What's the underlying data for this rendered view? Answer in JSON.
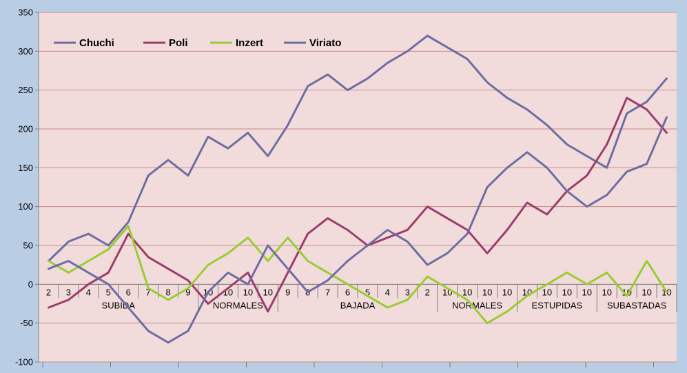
{
  "chart_data": {
    "type": "line",
    "title": "",
    "xlabel": "",
    "ylabel": "",
    "ylim": [
      -100,
      350
    ],
    "yticks": [
      350,
      300,
      250,
      200,
      150,
      100,
      50,
      0,
      -50,
      -100
    ],
    "grid": true,
    "legend_position": "top-left",
    "x_labels": [
      "2",
      "3",
      "4",
      "5",
      "6",
      "7",
      "8",
      "9",
      "10",
      "10",
      "10",
      "10",
      "9",
      "8",
      "7",
      "6",
      "5",
      "4",
      "3",
      "2",
      "10",
      "10",
      "10",
      "10",
      "10",
      "10",
      "10",
      "10",
      "10",
      "10",
      "10",
      "10"
    ],
    "groups": [
      {
        "label": "SUBIDA",
        "start": 0,
        "end": 8
      },
      {
        "label": "NORMALES",
        "start": 8,
        "end": 12
      },
      {
        "label": "BAJADA",
        "start": 12,
        "end": 20
      },
      {
        "label": "NORMALES",
        "start": 20,
        "end": 24
      },
      {
        "label": "ESTUPIDAS",
        "start": 24,
        "end": 28
      },
      {
        "label": "SUBASTADAS",
        "start": 28,
        "end": 32
      }
    ],
    "series": [
      {
        "name": "Chuchi",
        "color": "#6f6ca3",
        "values": [
          30,
          55,
          65,
          50,
          80,
          140,
          160,
          140,
          190,
          175,
          195,
          165,
          205,
          255,
          270,
          250,
          265,
          285,
          300,
          320,
          305,
          290,
          260,
          240,
          225,
          205,
          180,
          165,
          150,
          220,
          235,
          265
        ]
      },
      {
        "name": "Poli",
        "color": "#9b3c6b",
        "values": [
          -30,
          -20,
          0,
          15,
          65,
          35,
          20,
          5,
          -25,
          -5,
          15,
          -35,
          15,
          65,
          85,
          70,
          50,
          60,
          70,
          100,
          85,
          70,
          40,
          70,
          105,
          90,
          120,
          140,
          180,
          240,
          225,
          195
        ]
      },
      {
        "name": "Inzert",
        "color": "#99cc33",
        "values": [
          30,
          15,
          30,
          45,
          75,
          -5,
          -20,
          -5,
          25,
          40,
          60,
          30,
          60,
          30,
          15,
          0,
          -15,
          -30,
          -20,
          10,
          -5,
          -20,
          -50,
          -35,
          -15,
          0,
          15,
          0,
          15,
          -15,
          30,
          -10
        ]
      },
      {
        "name": "Viriato",
        "color": "#6f6ca3",
        "values": [
          20,
          30,
          15,
          0,
          -30,
          -60,
          -75,
          -60,
          -10,
          15,
          0,
          50,
          20,
          -10,
          5,
          30,
          50,
          70,
          55,
          25,
          40,
          65,
          125,
          150,
          170,
          150,
          120,
          100,
          115,
          145,
          155,
          215
        ]
      }
    ]
  }
}
